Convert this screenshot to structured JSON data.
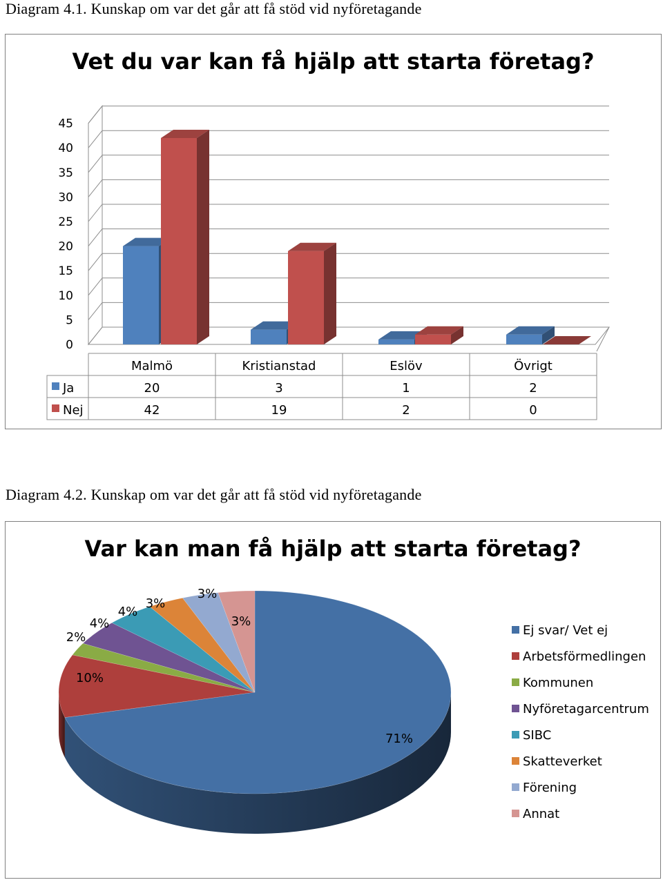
{
  "captions": {
    "diagram1": "Diagram 4.1. Kunskap om var det går att få stöd vid nyföretagande",
    "diagram2": "Diagram 4.2. Kunskap om var det går att få stöd vid nyföretagande"
  },
  "colors": {
    "blue": "#4f81bd",
    "red": "#c0504d"
  },
  "chart_data": [
    {
      "type": "bar",
      "title": "Vet du var kan få hjälp att starta företag?",
      "categories": [
        "Malmö",
        "Kristianstad",
        "Eslöv",
        "Övrigt"
      ],
      "series": [
        {
          "name": "Ja",
          "values": [
            20,
            3,
            1,
            2
          ],
          "color": "#4f81bd"
        },
        {
          "name": "Nej",
          "values": [
            42,
            19,
            2,
            0
          ],
          "color": "#c0504d"
        }
      ],
      "yticks": [
        "0",
        "5",
        "10",
        "15",
        "20",
        "25",
        "30",
        "35",
        "40",
        "45"
      ],
      "ylim": [
        0,
        45
      ],
      "grid": true,
      "data_table": true,
      "table_cells": {
        "ja": [
          "20",
          "3",
          "1",
          "2"
        ],
        "nej": [
          "42",
          "19",
          "2",
          "0"
        ]
      }
    },
    {
      "type": "pie",
      "title": "Var kan man få hjälp att starta företag?",
      "slices": [
        {
          "label": "Ej svar/ Vet ej",
          "value": 71,
          "display": "71%",
          "color": "#4470a5"
        },
        {
          "label": "Arbetsförmedlingen",
          "value": 10,
          "display": "10%",
          "color": "#ae3f3c"
        },
        {
          "label": "Kommunen",
          "value": 2,
          "display": "2%",
          "color": "#8aab45"
        },
        {
          "label": "Nyföretagarcentrum",
          "value": 4,
          "display": "4%",
          "color": "#6f5392"
        },
        {
          "label": "SIBC",
          "value": 4,
          "display": "4%",
          "color": "#3b9bb5"
        },
        {
          "label": "Skatteverket",
          "value": 3,
          "display": "3%",
          "color": "#dc8438"
        },
        {
          "label": "Förening",
          "value": 3,
          "display": "3%",
          "color": "#93a9d0"
        },
        {
          "label": "Annat",
          "value": 3,
          "display": "3%",
          "color": "#d59592"
        }
      ],
      "legend_position": "right"
    }
  ]
}
